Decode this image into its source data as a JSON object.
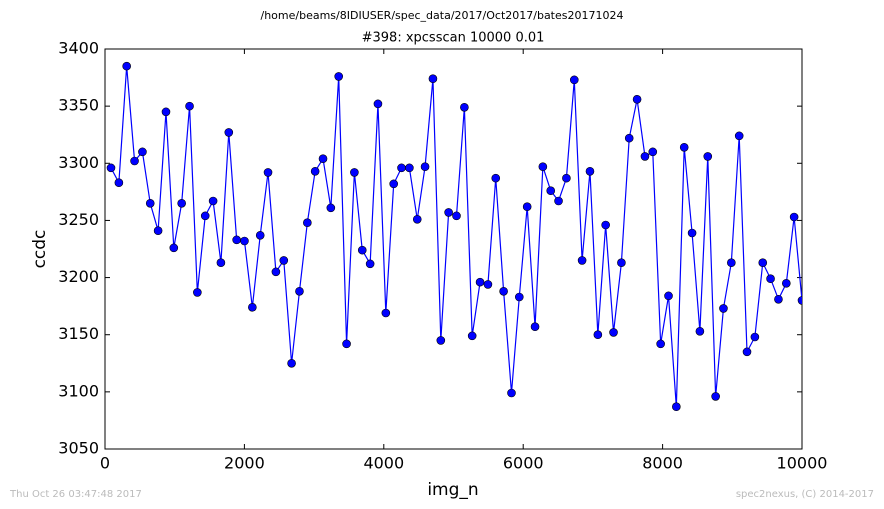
{
  "suptitle": "/home/beams/8IDIUSER/spec_data/2017/Oct2017/bates20171024",
  "footer_left": "Thu Oct 26 03:47:48 2017",
  "footer_right": "spec2nexus, (C) 2014-2017",
  "chart_data": {
    "type": "line",
    "title": "#398: xpcsscan 10000 0.01",
    "x_label": "img_n",
    "y_label": "ccdc",
    "x": [
      86,
      199,
      311,
      424,
      537,
      649,
      762,
      875,
      987,
      1100,
      1213,
      1325,
      1438,
      1551,
      1663,
      1776,
      1889,
      2001,
      2114,
      2227,
      2339,
      2452,
      2565,
      2677,
      2790,
      2903,
      3015,
      3128,
      3240,
      3353,
      3466,
      3578,
      3691,
      3804,
      3916,
      4029,
      4142,
      4254,
      4367,
      4480,
      4592,
      4705,
      4818,
      4930,
      5043,
      5156,
      5268,
      5381,
      5494,
      5606,
      5719,
      5832,
      5944,
      6057,
      6170,
      6282,
      6395,
      6507,
      6620,
      6733,
      6845,
      6958,
      7071,
      7183,
      7296,
      7409,
      7521,
      7634,
      7747,
      7859,
      7972,
      8085,
      8197,
      8310,
      8423,
      8535,
      8648,
      8761,
      8873,
      8986,
      9099,
      9211,
      9324,
      9437,
      9549,
      9662,
      9775,
      9887,
      10000
    ],
    "series": [
      {
        "color": "#0000ff",
        "values": [
          3296,
          3283,
          3385,
          3302,
          3310,
          3265,
          3241,
          3345,
          3226,
          3265,
          3350,
          3187,
          3254,
          3267,
          3213,
          3327,
          3233,
          3232,
          3174,
          3237,
          3292,
          3205,
          3215,
          3125,
          3188,
          3248,
          3293,
          3304,
          3261,
          3376,
          3142,
          3292,
          3224,
          3212,
          3352,
          3169,
          3282,
          3296,
          3296,
          3251,
          3297,
          3374,
          3145,
          3257,
          3254,
          3349,
          3149,
          3196,
          3194,
          3287,
          3188,
          3099,
          3183,
          3262,
          3157,
          3297,
          3276,
          3267,
          3287,
          3373,
          3215,
          3293,
          3150,
          3246,
          3152,
          3213,
          3322,
          3356,
          3306,
          3310,
          3142,
          3184,
          3087,
          3314,
          3239,
          3153,
          3306,
          3096,
          3173,
          3213,
          3324,
          3135,
          3148,
          3213,
          3199,
          3181,
          3195,
          3253,
          3180
        ]
      }
    ],
    "xlim": [
      0,
      10000
    ],
    "xticks": [
      0,
      2000,
      4000,
      6000,
      8000,
      10000
    ],
    "ylim": [
      3050,
      3400
    ],
    "yticks": [
      3050,
      3100,
      3150,
      3200,
      3250,
      3300,
      3350,
      3400
    ],
    "grid": false
  }
}
